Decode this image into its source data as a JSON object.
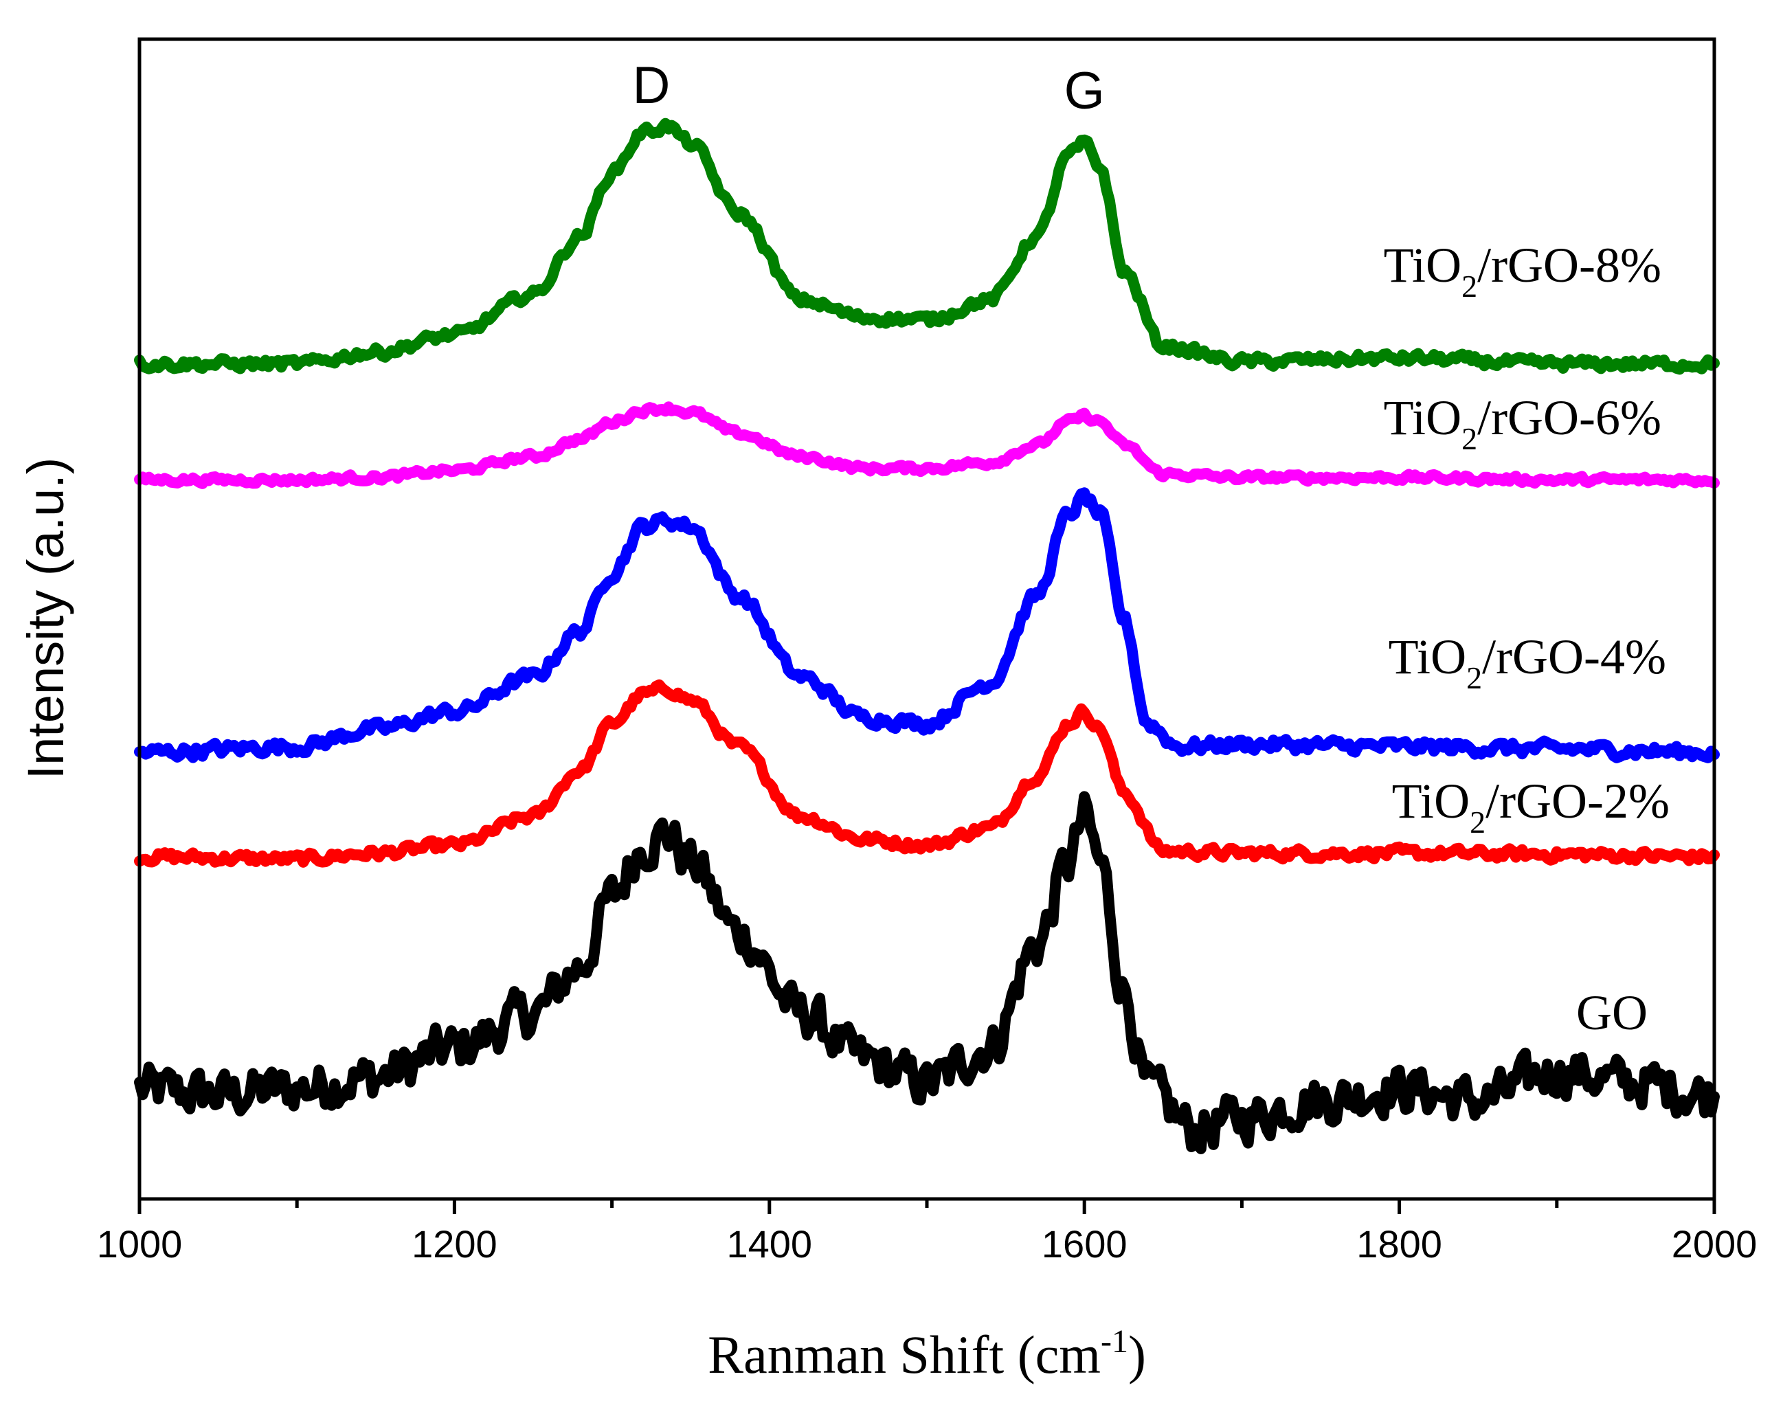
{
  "chart_data": {
    "type": "line",
    "title": "",
    "xlabel": "Ranman Shift (cm-1)",
    "xlabel_parts": {
      "main": "Ranman Shift (cm",
      "sup": "-1",
      "close": ")"
    },
    "ylabel": "Intensity (a.u.)",
    "xlim": [
      1000,
      2000
    ],
    "ylim": [
      0,
      10
    ],
    "x_ticks": [
      1000,
      1200,
      1400,
      1600,
      1800,
      2000
    ],
    "x_tick_labels": [
      "1000",
      "1200",
      "1400",
      "1600",
      "1800",
      "2000"
    ],
    "y_ticks_shown": false,
    "grid": false,
    "annotations": [
      {
        "text": "D",
        "x": 1325
      },
      {
        "text": "G",
        "x": 1600
      }
    ],
    "series": [
      {
        "name": "GO",
        "label_parts": {
          "main": "GO",
          "sub": "",
          "rest": ""
        },
        "color": "#000000",
        "baseline": 0.95,
        "noise": 0.18,
        "bg_bump": 0.2,
        "x": [
          1000,
          1050,
          1100,
          1150,
          1200,
          1250,
          1280,
          1300,
          1320,
          1335,
          1350,
          1380,
          1420,
          1460,
          1500,
          1540,
          1570,
          1590,
          1600,
          1610,
          1625,
          1640,
          1670,
          1700,
          1750,
          1800,
          1850,
          1900,
          1950,
          2000
        ],
        "values": [
          0.95,
          0.9,
          0.95,
          1.05,
          1.3,
          1.6,
          2.0,
          2.6,
          3.05,
          3.15,
          2.9,
          2.3,
          1.6,
          1.2,
          1.0,
          1.3,
          2.2,
          2.9,
          3.3,
          2.9,
          1.8,
          0.95,
          0.6,
          0.7,
          0.85,
          0.95,
          0.85,
          1.1,
          1.0,
          0.9
        ]
      },
      {
        "name": "TiO2/rGO-2%",
        "label_parts": {
          "main": "TiO",
          "sub": "2",
          "rest": "/rGO-2%"
        },
        "color": "#ff0000",
        "baseline": 2.95,
        "noise": 0.04,
        "bg_bump": 0,
        "x": [
          1000,
          1100,
          1150,
          1200,
          1250,
          1280,
          1300,
          1320,
          1335,
          1350,
          1380,
          1420,
          1460,
          1500,
          1540,
          1570,
          1590,
          1600,
          1610,
          1625,
          1650,
          1700,
          1800,
          1900,
          2000
        ],
        "values": [
          2.95,
          2.93,
          2.98,
          3.05,
          3.3,
          3.7,
          4.1,
          4.35,
          4.4,
          4.3,
          3.9,
          3.3,
          3.1,
          3.05,
          3.2,
          3.65,
          4.1,
          4.2,
          4.05,
          3.5,
          3.0,
          2.98,
          2.98,
          2.97,
          2.95
        ]
      },
      {
        "name": "TiO2/rGO-4%",
        "label_parts": {
          "main": "TiO",
          "sub": "2",
          "rest": "/rGO-4%"
        },
        "color": "#0000ff",
        "baseline": 3.85,
        "noise": 0.05,
        "bg_bump": 0,
        "x": [
          1000,
          1100,
          1150,
          1200,
          1250,
          1280,
          1300,
          1320,
          1335,
          1350,
          1380,
          1420,
          1460,
          1500,
          1540,
          1570,
          1590,
          1600,
          1610,
          1625,
          1640,
          1660,
          1700,
          1800,
          1900,
          2000
        ],
        "values": [
          3.85,
          3.9,
          4.05,
          4.2,
          4.5,
          4.9,
          5.4,
          5.8,
          5.85,
          5.8,
          5.2,
          4.5,
          4.15,
          4.1,
          4.45,
          5.2,
          5.9,
          6.05,
          5.9,
          5.0,
          4.1,
          3.9,
          3.92,
          3.9,
          3.88,
          3.85
        ]
      },
      {
        "name": "TiO2/rGO-6%",
        "label_parts": {
          "main": "TiO",
          "sub": "2",
          "rest": "/rGO-6%"
        },
        "color": "#ff00ff",
        "baseline": 6.2,
        "noise": 0.025,
        "bg_bump": 0,
        "x": [
          1000,
          1100,
          1150,
          1200,
          1250,
          1280,
          1300,
          1320,
          1335,
          1350,
          1380,
          1420,
          1460,
          1500,
          1540,
          1570,
          1590,
          1600,
          1610,
          1625,
          1650,
          1700,
          1800,
          1900,
          2000
        ],
        "values": [
          6.2,
          6.2,
          6.22,
          6.28,
          6.4,
          6.55,
          6.7,
          6.8,
          6.82,
          6.78,
          6.6,
          6.4,
          6.3,
          6.3,
          6.35,
          6.5,
          6.7,
          6.75,
          6.7,
          6.5,
          6.25,
          6.22,
          6.22,
          6.2,
          6.2
        ]
      },
      {
        "name": "TiO2/rGO-8%",
        "label_parts": {
          "main": "TiO",
          "sub": "2",
          "rest": "/rGO-8%"
        },
        "color": "#008000",
        "baseline": 7.2,
        "noise": 0.04,
        "bg_bump": 0,
        "x": [
          1000,
          1100,
          1150,
          1200,
          1250,
          1280,
          1300,
          1320,
          1335,
          1350,
          1380,
          1420,
          1460,
          1500,
          1540,
          1570,
          1590,
          1600,
          1610,
          1625,
          1650,
          1700,
          1800,
          1900,
          2000
        ],
        "values": [
          7.2,
          7.2,
          7.3,
          7.45,
          7.8,
          8.3,
          8.85,
          9.2,
          9.25,
          9.1,
          8.5,
          7.75,
          7.6,
          7.58,
          7.75,
          8.3,
          9.0,
          9.1,
          8.9,
          8.0,
          7.35,
          7.22,
          7.25,
          7.2,
          7.2
        ]
      }
    ]
  }
}
